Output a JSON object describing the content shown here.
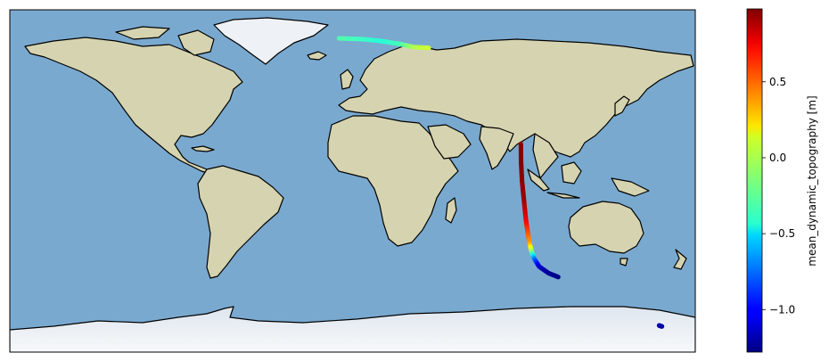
{
  "map": {
    "projection": "PlateCarree",
    "extent": {
      "lon": [
        -180,
        180
      ],
      "lat": [
        -90,
        90
      ]
    },
    "background": "shaded relief (ocean blue, land tan/green, ice white)",
    "coastlines": true,
    "colors": {
      "ocean": "#7aa9cf",
      "land": "#d6d4b0",
      "ice": "#eef1f5",
      "coastline": "#000000"
    }
  },
  "colorbar": {
    "label": "mean_dynamic_topography [m]",
    "colormap": "jet",
    "vmin": -1.28,
    "vmax": 0.98,
    "ticks": [
      {
        "value": 0.5,
        "label": "0.5"
      },
      {
        "value": 0.0,
        "label": "0.0"
      },
      {
        "value": -0.5,
        "label": "−0.5"
      },
      {
        "value": -1.0,
        "label": "−1.0"
      }
    ]
  },
  "chart_data": {
    "type": "scatter",
    "title": "",
    "xlabel": "",
    "ylabel": "",
    "color_variable": "mean_dynamic_topography [m]",
    "tracks": [
      {
        "points": [
          {
            "lon": -7,
            "lat": 75.0,
            "value": -0.25
          },
          {
            "lon": 5,
            "lat": 74.6,
            "value": -0.3
          },
          {
            "lon": 15,
            "lat": 73.6,
            "value": -0.35
          },
          {
            "lon": 25,
            "lat": 72.0,
            "value": -0.28
          },
          {
            "lon": 32,
            "lat": 70.4,
            "value": -0.05
          },
          {
            "lon": 40,
            "lat": 70.0,
            "value": 0.02
          }
        ]
      },
      {
        "points": [
          {
            "lon": 88.4,
            "lat": 19.5,
            "value": 0.95
          },
          {
            "lon": 88.5,
            "lat": 10.0,
            "value": 0.97
          },
          {
            "lon": 89.0,
            "lat": 0.0,
            "value": 0.95
          },
          {
            "lon": 90.0,
            "lat": -10.0,
            "value": 0.92
          },
          {
            "lon": 91.0,
            "lat": -20.0,
            "value": 0.75
          },
          {
            "lon": 92.0,
            "lat": -27.0,
            "value": 0.55
          },
          {
            "lon": 93.0,
            "lat": -33.0,
            "value": 0.35
          },
          {
            "lon": 94.0,
            "lat": -37.0,
            "value": -0.05
          },
          {
            "lon": 95.5,
            "lat": -41.0,
            "value": -0.7
          },
          {
            "lon": 98.0,
            "lat": -45.0,
            "value": -1.1
          },
          {
            "lon": 103.0,
            "lat": -48.5,
            "value": -1.22
          },
          {
            "lon": 108.0,
            "lat": -50.5,
            "value": -1.26
          }
        ]
      },
      {
        "points": [
          {
            "lon": 161.0,
            "lat": -76.0,
            "value": -1.15
          },
          {
            "lon": 162.5,
            "lat": -76.5,
            "value": -1.2
          }
        ]
      }
    ]
  }
}
